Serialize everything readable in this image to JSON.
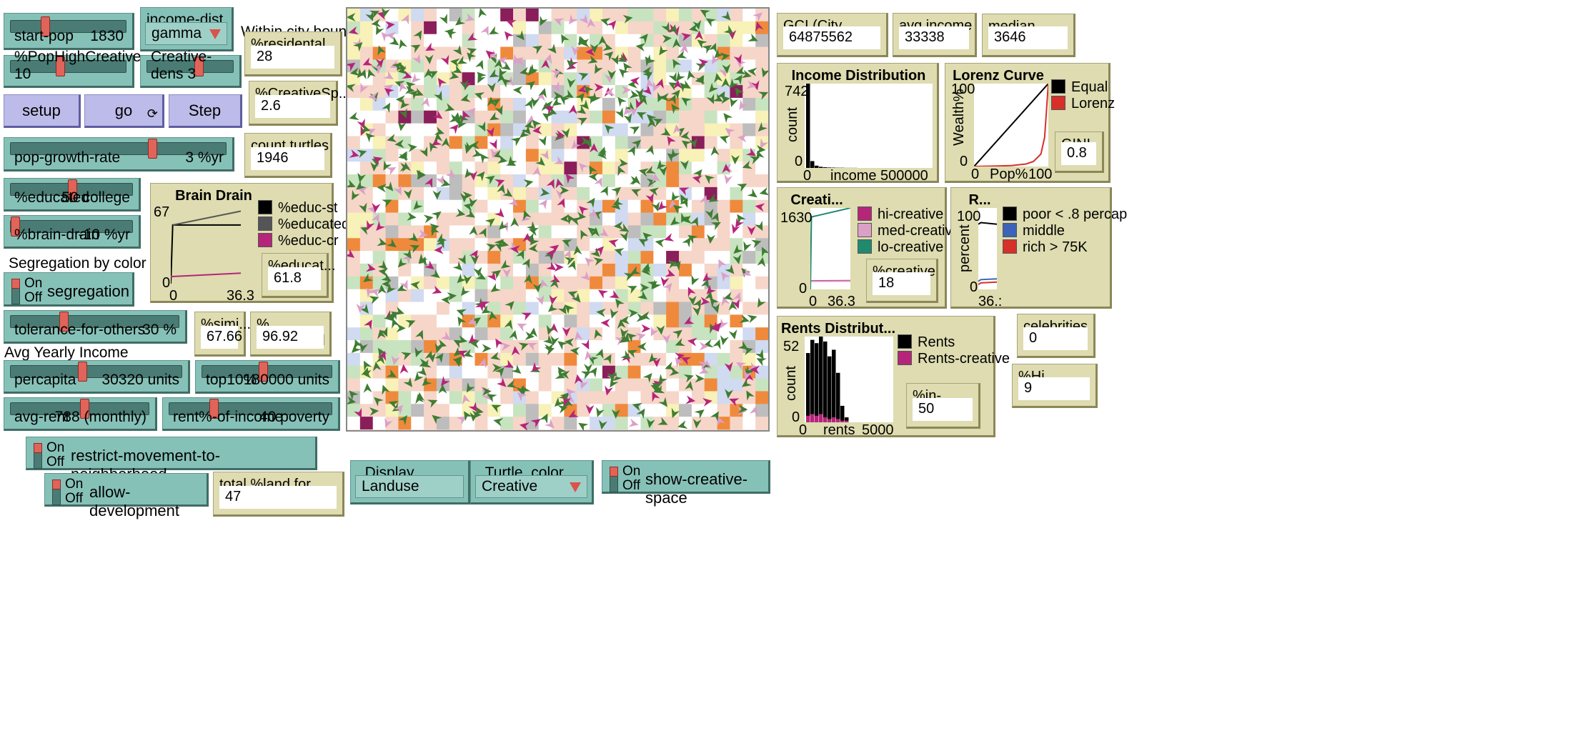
{
  "sliders": {
    "start_pop": {
      "label": "start-pop",
      "value": "1830",
      "fraction": 0.28
    },
    "pct_pop_high_creative": {
      "label": "%PopHighCreative 10",
      "fraction": 0.42
    },
    "creative_dens": {
      "label": "Creative-dens 3",
      "fraction": 0.6
    },
    "pop_growth_rate": {
      "label": "pop-growth-rate",
      "value": "3 %yr",
      "fraction": 0.66
    },
    "pct_educated": {
      "label": "%educated",
      "value": "50 college",
      "fraction": 0.5
    },
    "pct_brain_drain": {
      "label": "%brain-drain",
      "value": "-10 %yr",
      "fraction": 0.0
    },
    "tolerance_for_others": {
      "label": "tolerance-for-others",
      "value": "30 %",
      "fraction": 0.3
    },
    "percapita": {
      "label": "percapita",
      "value": "30320 units",
      "fraction": 0.41
    },
    "top10": {
      "label": "top10%",
      "value": "180000 units",
      "fraction": 0.46
    },
    "avg_rent": {
      "label": "avg-rent",
      "value": "788 (monthly)",
      "fraction": 0.53
    },
    "rent_pct_of_income": {
      "label": "rent%-of-income",
      "value": "40 poverty",
      "fraction": 0.26
    }
  },
  "choosers": {
    "income_dist": {
      "title": "income-dist",
      "value": "gamma"
    },
    "display": {
      "title": "_Display",
      "value": "Landuse"
    },
    "turtle_color": {
      "title": "_Turtle_color",
      "value": "Creative"
    }
  },
  "buttons": {
    "setup": "setup",
    "go": "go",
    "go_forever": "⟳",
    "step": "Step"
  },
  "notes": {
    "within_city": "Within city bounds",
    "segregation_by_color": "Segregation by color",
    "avg_yearly_income": "Avg Yearly Income"
  },
  "switches": {
    "on": "On",
    "off": "Off",
    "segregation": "segregation",
    "restrict_movement": "restrict-movement-to-neighborhood",
    "allow_development": "allow-development",
    "show_creative_space": "show-creative-space"
  },
  "monitors": {
    "residential_land": {
      "title": "%residental land",
      "value": "28"
    },
    "creative_space": {
      "title": "%CreativeSp...",
      "value": "2.6"
    },
    "count_turtles": {
      "title": "count turtles",
      "value": "1946"
    },
    "educated": {
      "title": "%educat...",
      "value": "61.8"
    },
    "similar": {
      "title": "%simi...",
      "value": "67.66"
    },
    "unsatisfied": {
      "title": "% unsatisfied",
      "value": "96.92"
    },
    "total_land_dev": {
      "title": "total %land for devel...",
      "value": "47"
    },
    "gci": {
      "title": "GCI (City Incomes)",
      "value": "64875562"
    },
    "avg_income": {
      "title": "avg income",
      "value": "33338"
    },
    "median_income": {
      "title": "median income",
      "value": "3646"
    },
    "gini": {
      "title": "GINI",
      "value": "0.8"
    },
    "pct_creative": {
      "title": "%creative",
      "value": "18"
    },
    "celebrities": {
      "title": "celebrities",
      "value": "0"
    },
    "pct_hi_creative": {
      "title": "%Hi Creative",
      "value": "9"
    },
    "in_poverty": {
      "title": "%in-poverty",
      "value": "50"
    }
  },
  "colors": {
    "slider": "#86c1b8",
    "button": "#bdbbe9",
    "monitor": "#dedcb0",
    "hi_creative": "#b5257a",
    "med_creative": "#dca0c8",
    "lo_creative": "#1f8a6e",
    "turtle": "#3f7d32"
  },
  "chart_data": [
    {
      "type": "line",
      "title": "Brain Drain",
      "ylim": [
        0,
        67
      ],
      "xlim": [
        0,
        36.3
      ],
      "y_ticks": [
        "67",
        "0"
      ],
      "x_ticks": [
        "0",
        "36.3"
      ],
      "series": [
        {
          "name": "%educ-st",
          "color": "#000000",
          "x": [
            0,
            1,
            36.3
          ],
          "y": [
            0,
            50,
            50
          ]
        },
        {
          "name": "%educated",
          "color": "#555555",
          "x": [
            1,
            36.3
          ],
          "y": [
            50,
            61.8
          ]
        },
        {
          "name": "%educ-cr",
          "color": "#b5257a",
          "x": [
            0,
            36.3
          ],
          "y": [
            6,
            9
          ]
        }
      ]
    },
    {
      "type": "bar",
      "title": "Income Distribution",
      "xlabel": "income",
      "ylabel": "count",
      "ylim": [
        0,
        742
      ],
      "xlim": [
        0,
        500000
      ],
      "y_ticks": [
        "742",
        "0"
      ],
      "x_ticks": [
        "0",
        "500000"
      ],
      "values": [
        742,
        60,
        20,
        10,
        6,
        4,
        3,
        2,
        2,
        1,
        1,
        1
      ]
    },
    {
      "type": "line",
      "title": "Lorenz Curve",
      "xlabel": "Pop%",
      "ylabel": "Wealth%",
      "ylim": [
        0,
        100
      ],
      "xlim": [
        0,
        100
      ],
      "y_ticks": [
        "100",
        "0"
      ],
      "x_ticks": [
        "0",
        "100"
      ],
      "series": [
        {
          "name": "Equal",
          "color": "#000000",
          "x": [
            0,
            100
          ],
          "y": [
            0,
            100
          ]
        },
        {
          "name": "Lorenz",
          "color": "#d7302a",
          "x": [
            0,
            50,
            70,
            80,
            90,
            95,
            100
          ],
          "y": [
            0,
            1,
            3,
            6,
            15,
            35,
            100
          ]
        }
      ]
    },
    {
      "type": "line",
      "title": "Creati...",
      "ylim": [
        0,
        1630
      ],
      "xlim": [
        0,
        36.3
      ],
      "y_ticks": [
        "1630",
        "0"
      ],
      "x_ticks": [
        "0",
        "36.3"
      ],
      "series": [
        {
          "name": "hi-creative",
          "color": "#b5257a",
          "x": [
            0,
            36.3
          ],
          "y": [
            170,
            175
          ]
        },
        {
          "name": "med-creative",
          "color": "#dca0c8",
          "x": [
            0,
            36.3
          ],
          "y": [
            160,
            165
          ]
        },
        {
          "name": "lo-creative",
          "color": "#1f8a6e",
          "x": [
            0,
            1,
            36.3
          ],
          "y": [
            0,
            1450,
            1630
          ]
        }
      ]
    },
    {
      "type": "line",
      "title": "R...",
      "ylabel": "percent",
      "ylim": [
        0,
        100
      ],
      "xlim": [
        0,
        36.3
      ],
      "y_ticks": [
        "100",
        "0"
      ],
      "x_ticks": [
        "36.:"
      ],
      "series": [
        {
          "name": "poor < .8 percap",
          "color": "#000000",
          "x": [
            0,
            5,
            36.3
          ],
          "y": [
            80,
            82,
            80
          ]
        },
        {
          "name": "middle",
          "color": "#3c63b8",
          "x": [
            0,
            5,
            36.3
          ],
          "y": [
            10,
            12,
            13
          ]
        },
        {
          "name": "rich > 75K",
          "color": "#d7302a",
          "x": [
            0,
            5,
            36.3
          ],
          "y": [
            6,
            8,
            9
          ]
        }
      ]
    },
    {
      "type": "bar",
      "title": "Rents Distribut...",
      "xlabel": "rents",
      "ylabel": "count",
      "ylim": [
        0,
        52
      ],
      "xlim": [
        0,
        5000
      ],
      "y_ticks": [
        "52",
        "0"
      ],
      "x_ticks": [
        "0",
        "5000"
      ],
      "series": [
        {
          "name": "Rents",
          "color": "#000000",
          "values": [
            42,
            50,
            48,
            52,
            49,
            40,
            44,
            30,
            10,
            3
          ]
        },
        {
          "name": "Rents-creative",
          "color": "#b5257a",
          "values": [
            4,
            5,
            4,
            5,
            3,
            2,
            3,
            2,
            1,
            1
          ]
        }
      ]
    }
  ]
}
